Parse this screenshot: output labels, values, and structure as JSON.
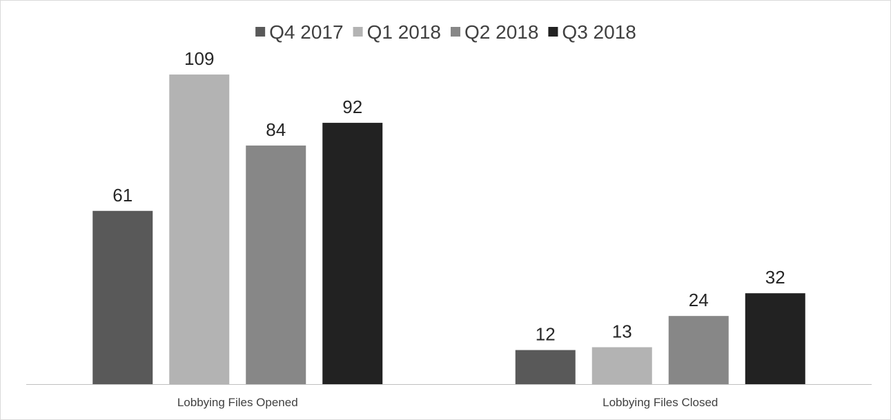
{
  "chart_data": {
    "type": "bar",
    "title": "",
    "xlabel": "",
    "ylabel": "",
    "categories": [
      "Lobbying Files Opened",
      "Lobbying Files Closed"
    ],
    "series": [
      {
        "name": "Q4 2017",
        "color": "#595959",
        "values": [
          61,
          12
        ]
      },
      {
        "name": "Q1 2018",
        "color": "#b3b3b3",
        "values": [
          109,
          13
        ]
      },
      {
        "name": "Q2 2018",
        "color": "#878787",
        "values": [
          84,
          24
        ]
      },
      {
        "name": "Q3 2018",
        "color": "#222222",
        "values": [
          92,
          32
        ]
      }
    ],
    "ylim": [
      0,
      118
    ],
    "grid": false,
    "legend_position": "top-center",
    "data_labels": true,
    "axis_color": "#bfbfbf"
  }
}
